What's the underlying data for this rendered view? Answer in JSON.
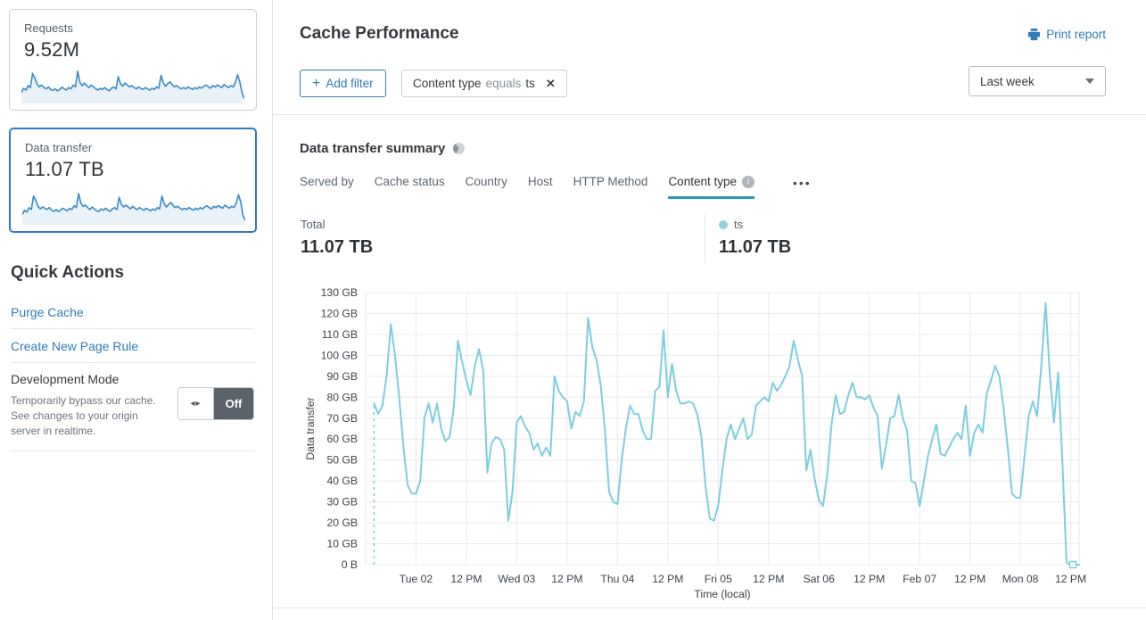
{
  "colors": {
    "accent_blue": "#2e7cb8",
    "selected_card_border": "#2f7bbf",
    "sparkline_line": "#3a8bc8",
    "sparkline_fill": "#e9f1f9",
    "chart_line": "#7dcee0",
    "legend_dot": "#8fd0e1",
    "tab_underline": "#2d96b4",
    "toggle_off_bg": "#5b6269"
  },
  "sidebar": {
    "requests_card": {
      "label": "Requests",
      "value": "9.52M",
      "sparkline": [
        28,
        42,
        36,
        50,
        44,
        88,
        72,
        55,
        46,
        52,
        44,
        40,
        46,
        38,
        35,
        40,
        34,
        38,
        45,
        40,
        36,
        44,
        40,
        52,
        46,
        95,
        60,
        50,
        58,
        50,
        44,
        52,
        46,
        40,
        36,
        42,
        38,
        44,
        38,
        34,
        42,
        46,
        40,
        78,
        56,
        48,
        58,
        52,
        46,
        50,
        44,
        40,
        46,
        42,
        38,
        44,
        40,
        36,
        42,
        38,
        46,
        42,
        82,
        58,
        48,
        56,
        62,
        52,
        46,
        50,
        44,
        40,
        44,
        40,
        46,
        42,
        38,
        44,
        40,
        46,
        42,
        48,
        52,
        46,
        42,
        50,
        46,
        52,
        48,
        44,
        54,
        48,
        44,
        50,
        46,
        60,
        84,
        62,
        26,
        10
      ]
    },
    "data_transfer_card": {
      "label": "Data transfer",
      "value": "11.07 TB",
      "sparkline": [
        26,
        40,
        34,
        48,
        42,
        84,
        70,
        52,
        44,
        50,
        46,
        42,
        48,
        40,
        36,
        42,
        36,
        40,
        46,
        42,
        38,
        46,
        42,
        54,
        48,
        92,
        62,
        52,
        56,
        48,
        42,
        50,
        44,
        38,
        36,
        44,
        40,
        46,
        40,
        36,
        44,
        48,
        42,
        80,
        58,
        50,
        56,
        50,
        44,
        52,
        46,
        42,
        48,
        44,
        40,
        46,
        42,
        38,
        44,
        40,
        48,
        44,
        84,
        60,
        50,
        58,
        64,
        54,
        48,
        52,
        46,
        42,
        46,
        42,
        48,
        44,
        40,
        46,
        42,
        48,
        44,
        50,
        54,
        48,
        44,
        52,
        48,
        54,
        50,
        46,
        56,
        50,
        46,
        52,
        48,
        62,
        88,
        66,
        24,
        8
      ]
    },
    "quick_actions": {
      "title": "Quick Actions",
      "purge_label": "Purge Cache",
      "page_rule_label": "Create New Page Rule",
      "development_mode": {
        "title": "Development Mode",
        "description": "Temporarily bypass our cache. See changes to your origin server in realtime.",
        "toggle_state": "Off",
        "toggle_grip": "◂▸"
      }
    }
  },
  "header": {
    "title": "Cache Performance",
    "print_label": "Print report"
  },
  "filters": {
    "add_filter_plus": "+",
    "add_filter_label": "Add filter",
    "chip": {
      "field": "Content type",
      "operator": "equals",
      "value": "ts",
      "close": "✕"
    },
    "time_range": "Last week"
  },
  "summary": {
    "title": "Data transfer summary",
    "tabs": [
      {
        "label": "Served by",
        "active": false,
        "has_info": false
      },
      {
        "label": "Cache status",
        "active": false,
        "has_info": false
      },
      {
        "label": "Country",
        "active": false,
        "has_info": false
      },
      {
        "label": "Host",
        "active": false,
        "has_info": false
      },
      {
        "label": "HTTP Method",
        "active": false,
        "has_info": false
      },
      {
        "label": "Content type",
        "active": true,
        "has_info": true
      }
    ],
    "more_label": "•••",
    "total_label": "Total",
    "total_value": "11.07 TB",
    "legend": {
      "name": "ts",
      "value": "11.07 TB"
    }
  },
  "chart_data": {
    "type": "line",
    "series_name": "ts",
    "unit": "GB",
    "xlabel": "Time (local)",
    "ylabel": "Data transfer",
    "y_max_gb": 130,
    "y_ticks": [
      {
        "gb": 130,
        "label": "130 GB"
      },
      {
        "gb": 120,
        "label": "120 GB"
      },
      {
        "gb": 110,
        "label": "110 GB"
      },
      {
        "gb": 100,
        "label": "100 GB"
      },
      {
        "gb": 90,
        "label": "90 GB"
      },
      {
        "gb": 80,
        "label": "80 GB"
      },
      {
        "gb": 70,
        "label": "70 GB"
      },
      {
        "gb": 60,
        "label": "60 GB"
      },
      {
        "gb": 50,
        "label": "50 GB"
      },
      {
        "gb": 40,
        "label": "40 GB"
      },
      {
        "gb": 30,
        "label": "30 GB"
      },
      {
        "gb": 20,
        "label": "20 GB"
      },
      {
        "gb": 10,
        "label": "10 GB"
      },
      {
        "gb": 0,
        "label": "0 B"
      }
    ],
    "x_range_hours": [
      0,
      170
    ],
    "x_ticks": [
      {
        "hour": 12,
        "label": "Tue 02"
      },
      {
        "hour": 24,
        "label": "12 PM"
      },
      {
        "hour": 36,
        "label": "Wed 03"
      },
      {
        "hour": 48,
        "label": "12 PM"
      },
      {
        "hour": 60,
        "label": "Thu 04"
      },
      {
        "hour": 72,
        "label": "12 PM"
      },
      {
        "hour": 84,
        "label": "Fri 05"
      },
      {
        "hour": 96,
        "label": "12 PM"
      },
      {
        "hour": 108,
        "label": "Sat 06"
      },
      {
        "hour": 120,
        "label": "12 PM"
      },
      {
        "hour": 132,
        "label": "Feb 07"
      },
      {
        "hour": 144,
        "label": "12 PM"
      },
      {
        "hour": 156,
        "label": "Mon 08"
      },
      {
        "hour": 168,
        "label": "12 PM"
      }
    ],
    "leading_dash": {
      "hour": 2,
      "from_gb": 0,
      "to_gb": 77
    },
    "end_marker_hour": 168.5,
    "points": [
      [
        2,
        77
      ],
      [
        3,
        72
      ],
      [
        4,
        76
      ],
      [
        5,
        90
      ],
      [
        6,
        115
      ],
      [
        7,
        100
      ],
      [
        8,
        80
      ],
      [
        9,
        56
      ],
      [
        10,
        38
      ],
      [
        11,
        34
      ],
      [
        12,
        34
      ],
      [
        13,
        40
      ],
      [
        14,
        70
      ],
      [
        15,
        77
      ],
      [
        16,
        68
      ],
      [
        17,
        77
      ],
      [
        18,
        65
      ],
      [
        19,
        59
      ],
      [
        20,
        61
      ],
      [
        21,
        75
      ],
      [
        22,
        107
      ],
      [
        23,
        97
      ],
      [
        24,
        88
      ],
      [
        25,
        81
      ],
      [
        26,
        95
      ],
      [
        27,
        103
      ],
      [
        28,
        93
      ],
      [
        29,
        44
      ],
      [
        30,
        58
      ],
      [
        31,
        61
      ],
      [
        32,
        60
      ],
      [
        33,
        55
      ],
      [
        34,
        21
      ],
      [
        35,
        35
      ],
      [
        36,
        68
      ],
      [
        37,
        71
      ],
      [
        38,
        66
      ],
      [
        39,
        63
      ],
      [
        40,
        55
      ],
      [
        41,
        58
      ],
      [
        42,
        52
      ],
      [
        43,
        56
      ],
      [
        44,
        52
      ],
      [
        45,
        90
      ],
      [
        46,
        83
      ],
      [
        47,
        80
      ],
      [
        48,
        78
      ],
      [
        49,
        65
      ],
      [
        50,
        73
      ],
      [
        51,
        71
      ],
      [
        52,
        78
      ],
      [
        53,
        118
      ],
      [
        54,
        104
      ],
      [
        55,
        98
      ],
      [
        56,
        86
      ],
      [
        57,
        65
      ],
      [
        58,
        35
      ],
      [
        59,
        30
      ],
      [
        60,
        29
      ],
      [
        61,
        50
      ],
      [
        62,
        65
      ],
      [
        63,
        76
      ],
      [
        64,
        72
      ],
      [
        65,
        72
      ],
      [
        66,
        64
      ],
      [
        67,
        60
      ],
      [
        68,
        60
      ],
      [
        69,
        83
      ],
      [
        70,
        85
      ],
      [
        71,
        112
      ],
      [
        72,
        80
      ],
      [
        73,
        96
      ],
      [
        74,
        83
      ],
      [
        75,
        77
      ],
      [
        76,
        77
      ],
      [
        77,
        78
      ],
      [
        78,
        77
      ],
      [
        79,
        72
      ],
      [
        80,
        61
      ],
      [
        81,
        37
      ],
      [
        82,
        22
      ],
      [
        83,
        21
      ],
      [
        84,
        28
      ],
      [
        85,
        45
      ],
      [
        86,
        60
      ],
      [
        87,
        67
      ],
      [
        88,
        60
      ],
      [
        89,
        65
      ],
      [
        90,
        70
      ],
      [
        91,
        60
      ],
      [
        92,
        62
      ],
      [
        93,
        76
      ],
      [
        94,
        78
      ],
      [
        95,
        80
      ],
      [
        96,
        78
      ],
      [
        97,
        87
      ],
      [
        98,
        83
      ],
      [
        99,
        86
      ],
      [
        100,
        90
      ],
      [
        101,
        95
      ],
      [
        102,
        107
      ],
      [
        103,
        98
      ],
      [
        104,
        90
      ],
      [
        105,
        45
      ],
      [
        106,
        55
      ],
      [
        107,
        41
      ],
      [
        108,
        31
      ],
      [
        109,
        28
      ],
      [
        110,
        43
      ],
      [
        111,
        67
      ],
      [
        112,
        81
      ],
      [
        113,
        72
      ],
      [
        114,
        73
      ],
      [
        115,
        81
      ],
      [
        116,
        87
      ],
      [
        117,
        80
      ],
      [
        118,
        80
      ],
      [
        119,
        79
      ],
      [
        120,
        81
      ],
      [
        121,
        75
      ],
      [
        122,
        71
      ],
      [
        123,
        46
      ],
      [
        124,
        57
      ],
      [
        125,
        70
      ],
      [
        126,
        71
      ],
      [
        127,
        81
      ],
      [
        128,
        70
      ],
      [
        129,
        64
      ],
      [
        130,
        40
      ],
      [
        131,
        39
      ],
      [
        132,
        28
      ],
      [
        133,
        40
      ],
      [
        134,
        52
      ],
      [
        135,
        60
      ],
      [
        136,
        67
      ],
      [
        137,
        53
      ],
      [
        138,
        52
      ],
      [
        139,
        56
      ],
      [
        140,
        60
      ],
      [
        141,
        63
      ],
      [
        142,
        60
      ],
      [
        143,
        76
      ],
      [
        144,
        52
      ],
      [
        145,
        63
      ],
      [
        146,
        67
      ],
      [
        147,
        63
      ],
      [
        148,
        82
      ],
      [
        149,
        88
      ],
      [
        150,
        95
      ],
      [
        151,
        90
      ],
      [
        152,
        75
      ],
      [
        153,
        56
      ],
      [
        154,
        34
      ],
      [
        155,
        32
      ],
      [
        156,
        32
      ],
      [
        157,
        52
      ],
      [
        158,
        71
      ],
      [
        159,
        78
      ],
      [
        160,
        71
      ],
      [
        161,
        95
      ],
      [
        162,
        125
      ],
      [
        163,
        91
      ],
      [
        164,
        68
      ],
      [
        165,
        92
      ],
      [
        166,
        50
      ],
      [
        167,
        1
      ],
      [
        168,
        0
      ],
      [
        170,
        0
      ]
    ]
  }
}
